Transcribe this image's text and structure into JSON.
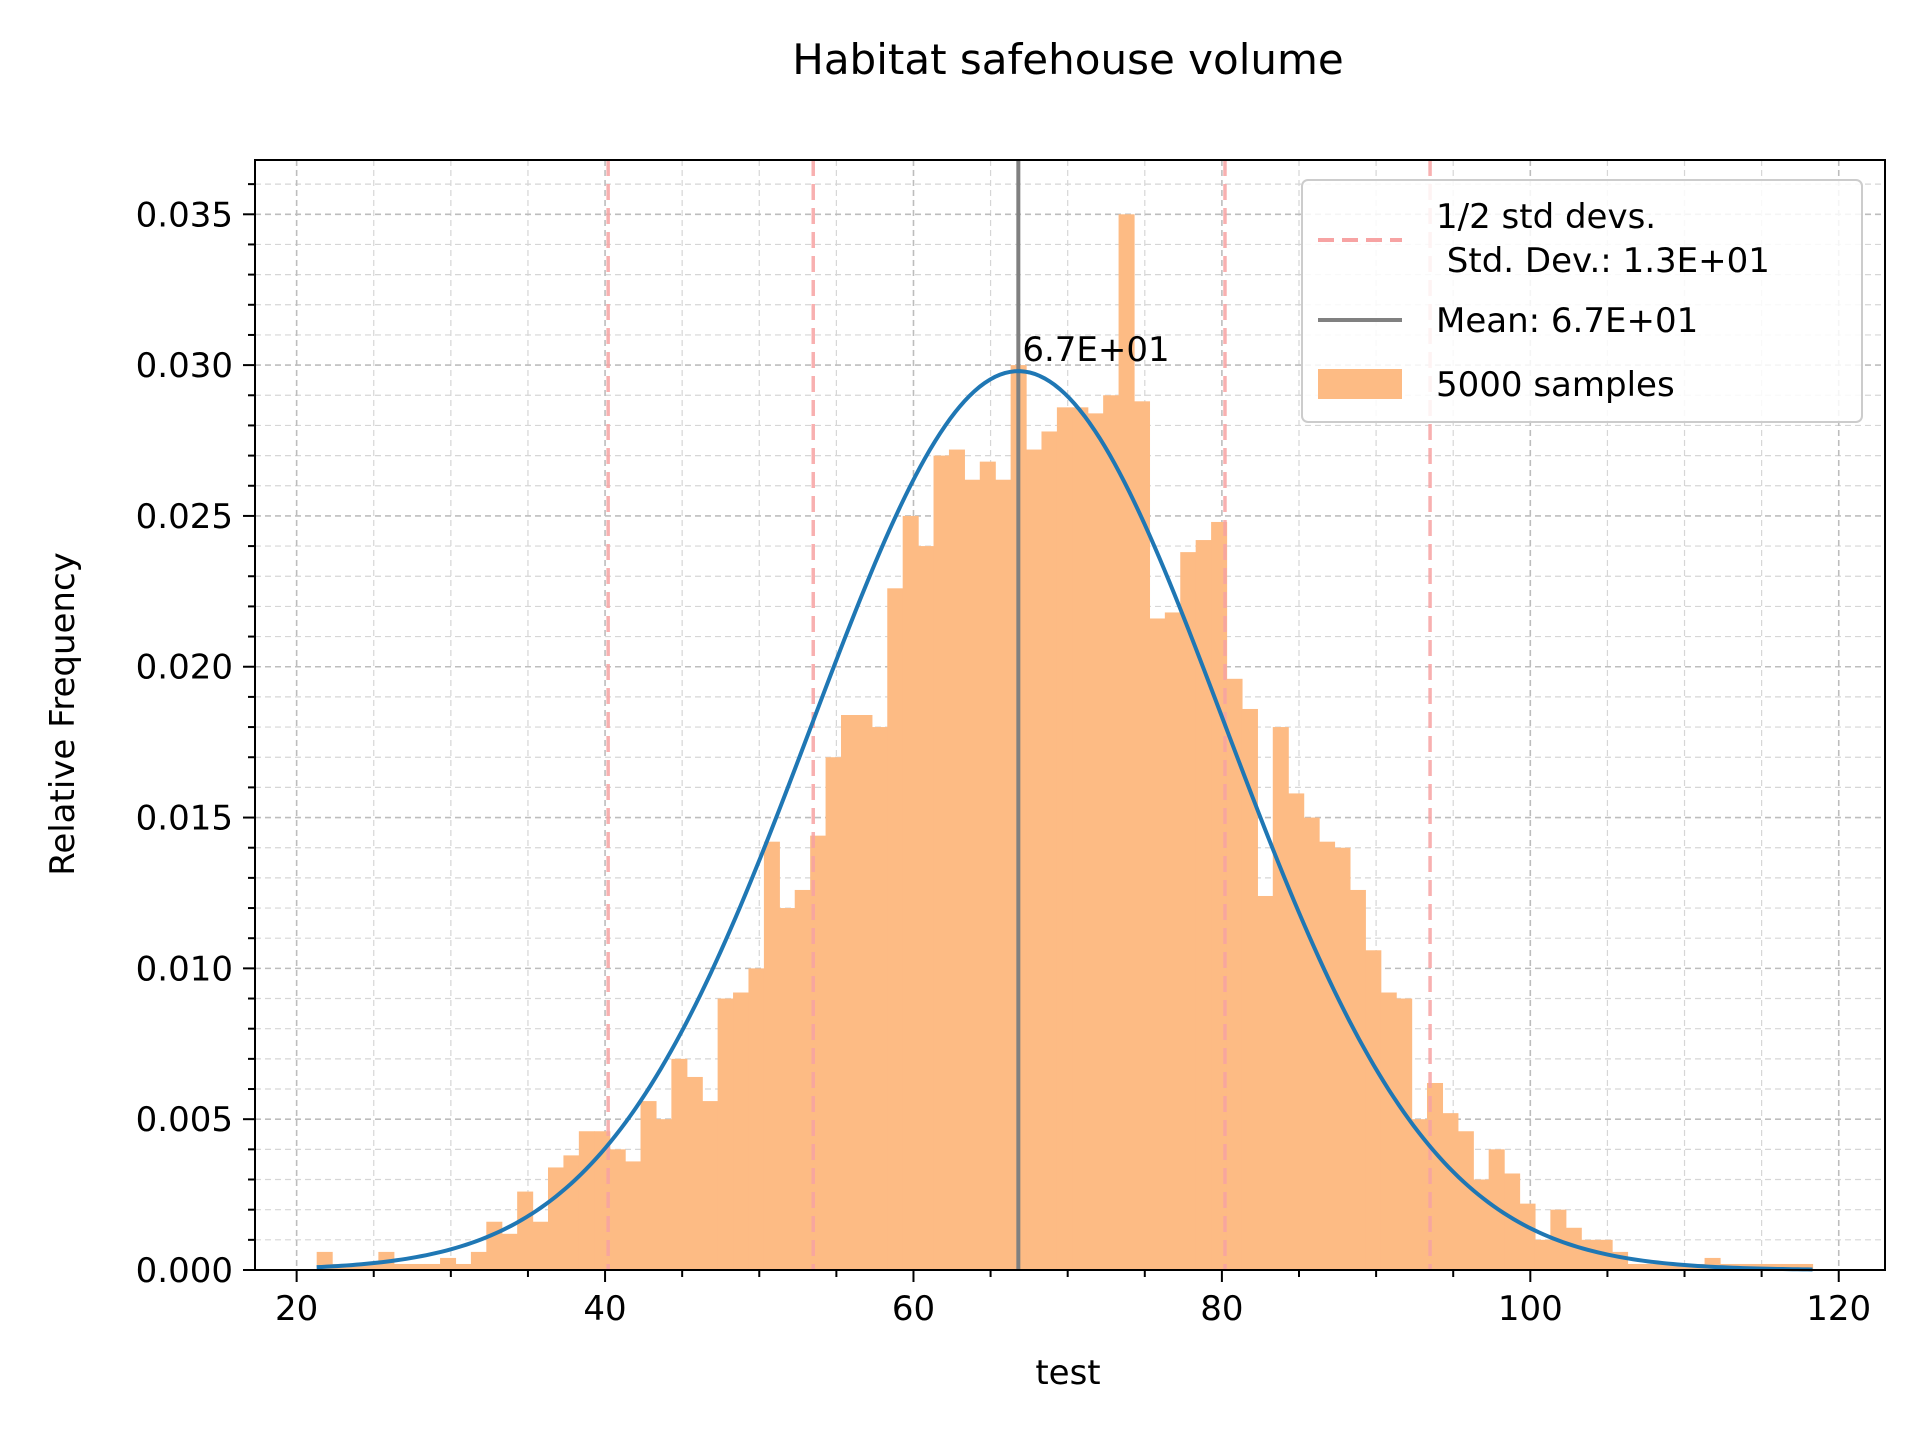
{
  "chart_data": {
    "type": "bar",
    "title": "Habitat  safehouse volume",
    "xlabel": "test",
    "ylabel": "Relative Frequency",
    "xlim": [
      17.3,
      123.0
    ],
    "ylim": [
      0.0,
      0.0368
    ],
    "xticks": [
      20,
      40,
      60,
      80,
      100,
      120
    ],
    "xtick_labels": [
      "20",
      "40",
      "60",
      "80",
      "100",
      "120"
    ],
    "yticks": [
      0.0,
      0.005,
      0.01,
      0.015,
      0.02,
      0.025,
      0.03,
      0.035
    ],
    "ytick_labels": [
      "0.000",
      "0.005",
      "0.010",
      "0.015",
      "0.020",
      "0.025",
      "0.030",
      "0.035"
    ],
    "grid": "major and minor, dashed",
    "legend_position": "top-right",
    "colors": {
      "histogram": "#fdbb84",
      "pdf_curve": "#1f77b4",
      "mean_line": "#808080",
      "std_lines": "#f7a3a3"
    },
    "histogram": {
      "name": "5000 samples",
      "bin_start": 21.3,
      "bin_width": 1.0,
      "values": [
        0.0006,
        0.0002,
        0.0002,
        0.0002,
        0.0006,
        0.0002,
        0.0002,
        0.0002,
        0.0004,
        0.0002,
        0.0006,
        0.0016,
        0.0012,
        0.0026,
        0.0016,
        0.0034,
        0.0038,
        0.0046,
        0.0046,
        0.004,
        0.0036,
        0.0056,
        0.005,
        0.007,
        0.0064,
        0.0056,
        0.009,
        0.0092,
        0.01,
        0.0142,
        0.012,
        0.0126,
        0.0144,
        0.017,
        0.0184,
        0.0184,
        0.018,
        0.0226,
        0.025,
        0.024,
        0.027,
        0.0272,
        0.0262,
        0.0268,
        0.0262,
        0.03,
        0.0272,
        0.0278,
        0.0286,
        0.0286,
        0.0284,
        0.029,
        0.035,
        0.0288,
        0.0216,
        0.0218,
        0.0238,
        0.0242,
        0.0248,
        0.0196,
        0.0186,
        0.0124,
        0.018,
        0.0158,
        0.015,
        0.0142,
        0.014,
        0.0126,
        0.0106,
        0.0092,
        0.009,
        0.005,
        0.0062,
        0.0052,
        0.0046,
        0.003,
        0.004,
        0.0032,
        0.0022,
        0.001,
        0.002,
        0.0014,
        0.001,
        0.001,
        0.0006,
        0.0002,
        0.0002,
        0.0002,
        0.0002,
        0.0002,
        0.0004,
        0.0002,
        0.0002,
        0.0002,
        0.0002,
        0.0002,
        0.0002
      ]
    },
    "normal_fit": {
      "mean": 66.8,
      "std": 13.4,
      "x_range": [
        21.3,
        118.3
      ],
      "peak": 0.0298
    },
    "mean_line": {
      "x": 66.8,
      "label": "6.7E+01"
    },
    "std_lines": [
      40.2,
      53.5,
      80.2,
      93.5
    ],
    "legend": {
      "std_label": "1/2 std devs.\n Std. Dev.: 1.3E+01",
      "mean_label": "Mean: 6.7E+01",
      "hist_label": "5000 samples"
    }
  }
}
